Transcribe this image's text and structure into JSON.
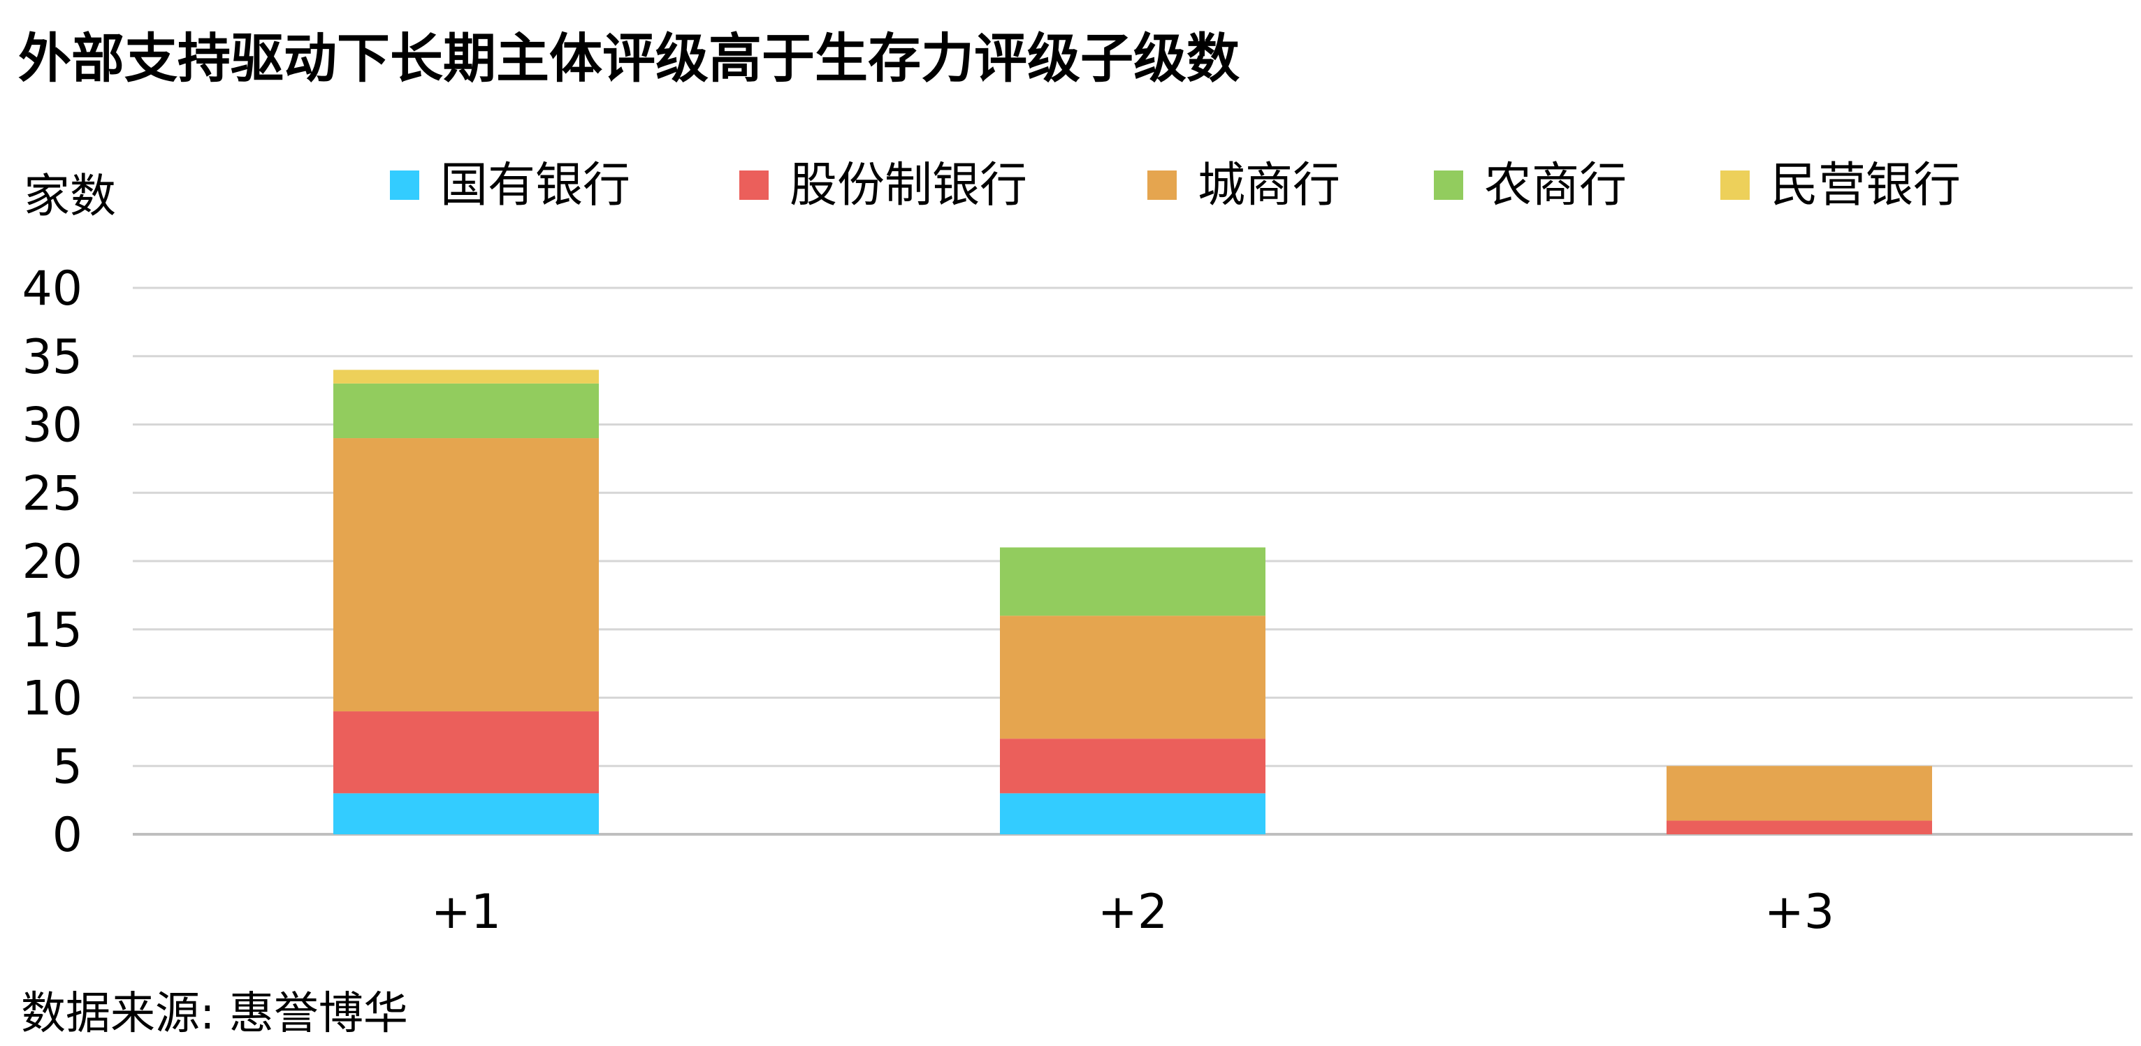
{
  "chart_data": {
    "type": "bar",
    "stacked": true,
    "title": "外部支持驱动下长期主体评级高于生存力评级子级数",
    "ylabel": "家数",
    "xlabel": "",
    "source": "数据来源: 惠誉博华",
    "categories": [
      "+1",
      "+2",
      "+3"
    ],
    "ylim": [
      0,
      40
    ],
    "yticks": [
      0,
      5,
      10,
      15,
      20,
      25,
      30,
      35,
      40
    ],
    "grid": true,
    "legend_position": "top",
    "series": [
      {
        "name": "国有银行",
        "color": "#33CCFF",
        "values": [
          3,
          3,
          0
        ]
      },
      {
        "name": "股份制银行",
        "color": "#EB5F5B",
        "values": [
          6,
          4,
          1
        ]
      },
      {
        "name": "城商行",
        "color": "#E5A54F",
        "values": [
          20,
          9,
          4
        ]
      },
      {
        "name": "农商行",
        "color": "#92CC5E",
        "values": [
          4,
          5,
          0
        ]
      },
      {
        "name": "民营银行",
        "color": "#EDD05A",
        "values": [
          1,
          0,
          0
        ]
      }
    ]
  }
}
